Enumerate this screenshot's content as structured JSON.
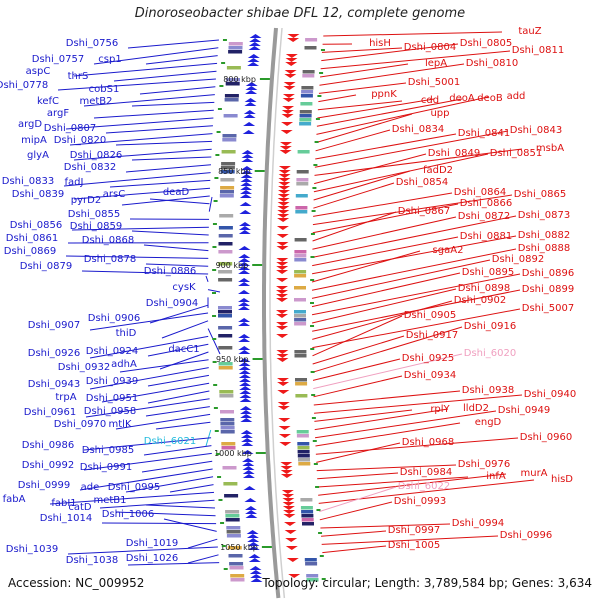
{
  "title": "Dinoroseobacter shibae DFL 12, complete genome",
  "accession": "Accession: NC_009952",
  "summary": "Topology: circular; Length: 3,789,584 bp; Genes: 3,634",
  "colors": {
    "left_label": "#1a1acc",
    "right_label": "#dd1111",
    "rna_left": "#22bbdd",
    "rna_right": "#f0a0c0",
    "backbone": "#888888",
    "tick": "#2a9a2a"
  },
  "ticks": [
    {
      "label": "800 kbp"
    },
    {
      "label": "850 kbp"
    },
    {
      "label": "900 kbp"
    },
    {
      "label": "950 kbp"
    },
    {
      "label": "1000 kbp"
    },
    {
      "label": "1050 kbp"
    }
  ],
  "left_labels": [
    {
      "text": "Dshi_0756"
    },
    {
      "text": "Dshi_0757"
    },
    {
      "text": "csp1"
    },
    {
      "text": "aspC"
    },
    {
      "text": "thrS"
    },
    {
      "text": "Dshi_0778"
    },
    {
      "text": "cobS1"
    },
    {
      "text": "kefC"
    },
    {
      "text": "metB2"
    },
    {
      "text": "argF"
    },
    {
      "text": "argD"
    },
    {
      "text": "Dshi_0807"
    },
    {
      "text": "mipA"
    },
    {
      "text": "Dshi_0820"
    },
    {
      "text": "glyA"
    },
    {
      "text": "Dshi_0826"
    },
    {
      "text": "Dshi_0832"
    },
    {
      "text": "Dshi_0833"
    },
    {
      "text": "fadJ"
    },
    {
      "text": "Dshi_0839"
    },
    {
      "text": "pyrD2"
    },
    {
      "text": "arsC"
    },
    {
      "text": "deaD"
    },
    {
      "text": "Dshi_0855"
    },
    {
      "text": "Dshi_0856"
    },
    {
      "text": "Dshi_0859"
    },
    {
      "text": "Dshi_0861"
    },
    {
      "text": "Dshi_0868"
    },
    {
      "text": "Dshi_0869"
    },
    {
      "text": "Dshi_0878"
    },
    {
      "text": "Dshi_0879"
    },
    {
      "text": "Dshi_0886"
    },
    {
      "text": "cysK"
    },
    {
      "text": "Dshi_0904"
    },
    {
      "text": "Dshi_0906"
    },
    {
      "text": "Dshi_0907"
    },
    {
      "text": "thiD"
    },
    {
      "text": "dacC1"
    },
    {
      "text": "Dshi_0926"
    },
    {
      "text": "Dshi_0924"
    },
    {
      "text": "adhA"
    },
    {
      "text": "Dshi_0932"
    },
    {
      "text": "Dshi_0943"
    },
    {
      "text": "Dshi_0939"
    },
    {
      "text": "trpA"
    },
    {
      "text": "Dshi_0951"
    },
    {
      "text": "Dshi_0961"
    },
    {
      "text": "Dshi_0958"
    },
    {
      "text": "Dshi_0970"
    },
    {
      "text": "mtlK"
    },
    {
      "text": "Dshi_6021"
    },
    {
      "text": "Dshi_0986"
    },
    {
      "text": "Dshi_0985"
    },
    {
      "text": "Dshi_0992"
    },
    {
      "text": "Dshi_0991"
    },
    {
      "text": "Dshi_0999"
    },
    {
      "text": "ade"
    },
    {
      "text": "Dshi_0995"
    },
    {
      "text": "fabA"
    },
    {
      "text": "fabI1"
    },
    {
      "text": "metB1"
    },
    {
      "text": "catD"
    },
    {
      "text": "Dshi_1014"
    },
    {
      "text": "Dshi_1006"
    },
    {
      "text": "Dshi_1019"
    },
    {
      "text": "Dshi_1039"
    },
    {
      "text": "Dshi_1026"
    },
    {
      "text": "Dshi_1038"
    }
  ],
  "right_labels": [
    {
      "text": "tauZ"
    },
    {
      "text": "hisH"
    },
    {
      "text": "Dshi_0804"
    },
    {
      "text": "Dshi_0805"
    },
    {
      "text": "Dshi_0811"
    },
    {
      "text": "lepA"
    },
    {
      "text": "Dshi_0810"
    },
    {
      "text": "Dshi_5001"
    },
    {
      "text": "ppnK"
    },
    {
      "text": "cdd"
    },
    {
      "text": "deoA"
    },
    {
      "text": "deoB"
    },
    {
      "text": "add"
    },
    {
      "text": "upp"
    },
    {
      "text": "Dshi_0834"
    },
    {
      "text": "Dshi_0841"
    },
    {
      "text": "Dshi_0843"
    },
    {
      "text": "msbA"
    },
    {
      "text": "Dshi_0849"
    },
    {
      "text": "Dshi_0851"
    },
    {
      "text": "fadD2"
    },
    {
      "text": "Dshi_0854"
    },
    {
      "text": "Dshi_0864"
    },
    {
      "text": "Dshi_0865"
    },
    {
      "text": "Dshi_0866"
    },
    {
      "text": "Dshi_0867"
    },
    {
      "text": "Dshi_0872"
    },
    {
      "text": "Dshi_0873"
    },
    {
      "text": "Dshi_0881"
    },
    {
      "text": "Dshi_0882"
    },
    {
      "text": "sgaA2"
    },
    {
      "text": "Dshi_0888"
    },
    {
      "text": "Dshi_0892"
    },
    {
      "text": "Dshi_0895"
    },
    {
      "text": "Dshi_0896"
    },
    {
      "text": "Dshi_0898"
    },
    {
      "text": "Dshi_0899"
    },
    {
      "text": "Dshi_0902"
    },
    {
      "text": "Dshi_5007"
    },
    {
      "text": "Dshi_0905"
    },
    {
      "text": "Dshi_0917"
    },
    {
      "text": "Dshi_0916"
    },
    {
      "text": "Dshi_0925"
    },
    {
      "text": "Dshi_6020"
    },
    {
      "text": "Dshi_0934"
    },
    {
      "text": "Dshi_0938"
    },
    {
      "text": "Dshi_0940"
    },
    {
      "text": "rplY"
    },
    {
      "text": "lldD2"
    },
    {
      "text": "Dshi_0949"
    },
    {
      "text": "engD"
    },
    {
      "text": "Dshi_0960"
    },
    {
      "text": "Dshi_0968"
    },
    {
      "text": "Dshi_0976"
    },
    {
      "text": "Dshi_0984"
    },
    {
      "text": "infA"
    },
    {
      "text": "murA"
    },
    {
      "text": "hisD"
    },
    {
      "text": "Dshi_6022"
    },
    {
      "text": "Dshi_0993"
    },
    {
      "text": "Dshi_0994"
    },
    {
      "text": "Dshi_0997"
    },
    {
      "text": "Dshi_0996"
    },
    {
      "text": "Dshi_1005"
    }
  ]
}
